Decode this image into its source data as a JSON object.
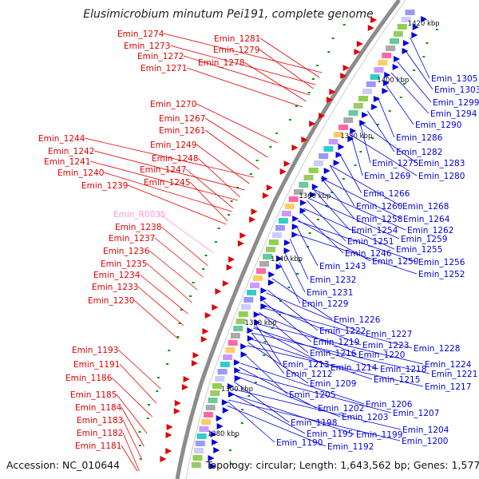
{
  "title": "Elusimicrobium minutum Pei191, complete genome",
  "footer": {
    "accession": "Accession: NC_010644",
    "summary": "Topology: circular; Length: 1,643,562 bp; Genes: 1,577"
  },
  "colors": {
    "forward": "#e00000",
    "reverse": "#0000e0",
    "rna": "#ff99cc",
    "backbone": "#888888",
    "minor_marks": "#009900"
  },
  "scale_marks": [
    "1420 kbp",
    "1400 kbp",
    "1380 kbp",
    "1360 kbp",
    "1340 kbp",
    "1320 kbp",
    "1300 kbp",
    "1280 kbp"
  ],
  "left_labels": [
    {
      "text": "Emin_1274",
      "kind": "forward"
    },
    {
      "text": "Emin_1273",
      "kind": "forward"
    },
    {
      "text": "Emin_1272",
      "kind": "forward"
    },
    {
      "text": "Emin_1271",
      "kind": "forward"
    },
    {
      "text": "Emin_1281",
      "kind": "forward"
    },
    {
      "text": "Emin_1279",
      "kind": "forward"
    },
    {
      "text": "Emin_1278",
      "kind": "forward"
    },
    {
      "text": "Emin_1270",
      "kind": "forward"
    },
    {
      "text": "Emin_1267",
      "kind": "forward"
    },
    {
      "text": "Emin_1261",
      "kind": "forward"
    },
    {
      "text": "Emin_1249",
      "kind": "forward"
    },
    {
      "text": "Emin_1248",
      "kind": "forward"
    },
    {
      "text": "Emin_1247",
      "kind": "forward"
    },
    {
      "text": "Emin_1245",
      "kind": "forward"
    },
    {
      "text": "Emin_1244",
      "kind": "forward"
    },
    {
      "text": "Emin_1242",
      "kind": "forward"
    },
    {
      "text": "Emin_1241",
      "kind": "forward"
    },
    {
      "text": "Emin_1240",
      "kind": "forward"
    },
    {
      "text": "Emin_1239",
      "kind": "forward"
    },
    {
      "text": "Emin_R0035",
      "kind": "rna"
    },
    {
      "text": "Emin_1238",
      "kind": "forward"
    },
    {
      "text": "Emin_1237",
      "kind": "forward"
    },
    {
      "text": "Emin_1236",
      "kind": "forward"
    },
    {
      "text": "Emin_1235",
      "kind": "forward"
    },
    {
      "text": "Emin_1234",
      "kind": "forward"
    },
    {
      "text": "Emin_1233",
      "kind": "forward"
    },
    {
      "text": "Emin_1230",
      "kind": "forward"
    },
    {
      "text": "Emin_1193",
      "kind": "forward"
    },
    {
      "text": "Emin_1191",
      "kind": "forward"
    },
    {
      "text": "Emin_1186",
      "kind": "forward"
    },
    {
      "text": "Emin_1185",
      "kind": "forward"
    },
    {
      "text": "Emin_1184",
      "kind": "forward"
    },
    {
      "text": "Emin_1183",
      "kind": "forward"
    },
    {
      "text": "Emin_1182",
      "kind": "forward"
    },
    {
      "text": "Emin_1181",
      "kind": "forward"
    }
  ],
  "right_labels": [
    {
      "text": "Emin_1305",
      "kind": "reverse"
    },
    {
      "text": "Emin_1303",
      "kind": "reverse"
    },
    {
      "text": "Emin_1299",
      "kind": "reverse"
    },
    {
      "text": "Emin_1294",
      "kind": "reverse"
    },
    {
      "text": "Emin_1290",
      "kind": "reverse"
    },
    {
      "text": "Emin_1286",
      "kind": "reverse"
    },
    {
      "text": "Emin_1282",
      "kind": "reverse"
    },
    {
      "text": "Emin_1275",
      "kind": "reverse"
    },
    {
      "text": "Emin_1283",
      "kind": "reverse"
    },
    {
      "text": "Emin_1269",
      "kind": "reverse"
    },
    {
      "text": "Emin_1280",
      "kind": "reverse"
    },
    {
      "text": "Emin_1266",
      "kind": "reverse"
    },
    {
      "text": "Emin_1260",
      "kind": "reverse"
    },
    {
      "text": "Emin_1268",
      "kind": "reverse"
    },
    {
      "text": "Emin_1258",
      "kind": "reverse"
    },
    {
      "text": "Emin_1264",
      "kind": "reverse"
    },
    {
      "text": "Emin_1254",
      "kind": "reverse"
    },
    {
      "text": "Emin_1262",
      "kind": "reverse"
    },
    {
      "text": "Emin_1251",
      "kind": "reverse"
    },
    {
      "text": "Emin_1259",
      "kind": "reverse"
    },
    {
      "text": "Emin_1246",
      "kind": "reverse"
    },
    {
      "text": "Emin_1255",
      "kind": "reverse"
    },
    {
      "text": "Emin_1250",
      "kind": "reverse"
    },
    {
      "text": "Emin_1256",
      "kind": "reverse"
    },
    {
      "text": "Emin_1243",
      "kind": "reverse"
    },
    {
      "text": "Emin_1252",
      "kind": "reverse"
    },
    {
      "text": "Emin_1232",
      "kind": "reverse"
    },
    {
      "text": "Emin_1231",
      "kind": "reverse"
    },
    {
      "text": "Emin_1229",
      "kind": "reverse"
    },
    {
      "text": "Emin_1226",
      "kind": "reverse"
    },
    {
      "text": "Emin_1222",
      "kind": "reverse"
    },
    {
      "text": "Emin_1227",
      "kind": "reverse"
    },
    {
      "text": "Emin_1219",
      "kind": "reverse"
    },
    {
      "text": "Emin_1223",
      "kind": "reverse"
    },
    {
      "text": "Emin_1228",
      "kind": "reverse"
    },
    {
      "text": "Emin_1216",
      "kind": "reverse"
    },
    {
      "text": "Emin_1220",
      "kind": "reverse"
    },
    {
      "text": "Emin_1213",
      "kind": "reverse"
    },
    {
      "text": "Emin_1218",
      "kind": "reverse"
    },
    {
      "text": "Emin_1224",
      "kind": "reverse"
    },
    {
      "text": "Emin_1214",
      "kind": "reverse"
    },
    {
      "text": "Emin_1221",
      "kind": "reverse"
    },
    {
      "text": "Emin_1212",
      "kind": "reverse"
    },
    {
      "text": "Emin_1215",
      "kind": "reverse"
    },
    {
      "text": "Emin_1217",
      "kind": "reverse"
    },
    {
      "text": "Emin_1209",
      "kind": "reverse"
    },
    {
      "text": "Emin_1205",
      "kind": "reverse"
    },
    {
      "text": "Emin_1206",
      "kind": "reverse"
    },
    {
      "text": "Emin_1202",
      "kind": "reverse"
    },
    {
      "text": "Emin_1207",
      "kind": "reverse"
    },
    {
      "text": "Emin_1203",
      "kind": "reverse"
    },
    {
      "text": "Emin_1198",
      "kind": "reverse"
    },
    {
      "text": "Emin_1204",
      "kind": "reverse"
    },
    {
      "text": "Emin_1195",
      "kind": "reverse"
    },
    {
      "text": "Emin_1199",
      "kind": "reverse"
    },
    {
      "text": "Emin_1200",
      "kind": "reverse"
    },
    {
      "text": "Emin_1190",
      "kind": "reverse"
    },
    {
      "text": "Emin_1192",
      "kind": "reverse"
    }
  ]
}
